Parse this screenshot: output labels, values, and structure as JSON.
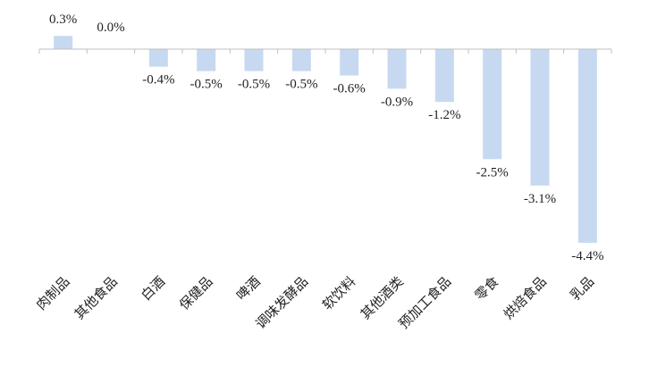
{
  "chart_data": {
    "type": "bar",
    "title": "",
    "xlabel": "",
    "ylabel": "",
    "categories": [
      "肉制品",
      "其他食品",
      "白酒",
      "保健品",
      "啤酒",
      "调味发酵品",
      "软饮料",
      "其他酒类",
      "预加工食品",
      "零食",
      "烘焙食品",
      "乳品"
    ],
    "values": [
      0.3,
      0.0,
      -0.4,
      -0.5,
      -0.5,
      -0.5,
      -0.6,
      -0.9,
      -1.2,
      -2.5,
      -3.1,
      -4.4
    ],
    "value_labels": [
      "0.3%",
      "0.0%",
      "-0.4%",
      "-0.5%",
      "-0.5%",
      "-0.5%",
      "-0.6%",
      "-0.9%",
      "-1.2%",
      "-2.5%",
      "-3.1%",
      "-4.4%"
    ],
    "ylim": [
      -4.4,
      0.3
    ],
    "grid": false,
    "legend": "none",
    "colors": {
      "bar": "#c6d9f1",
      "axis": "#bfbfbf",
      "text": "#222222"
    }
  }
}
